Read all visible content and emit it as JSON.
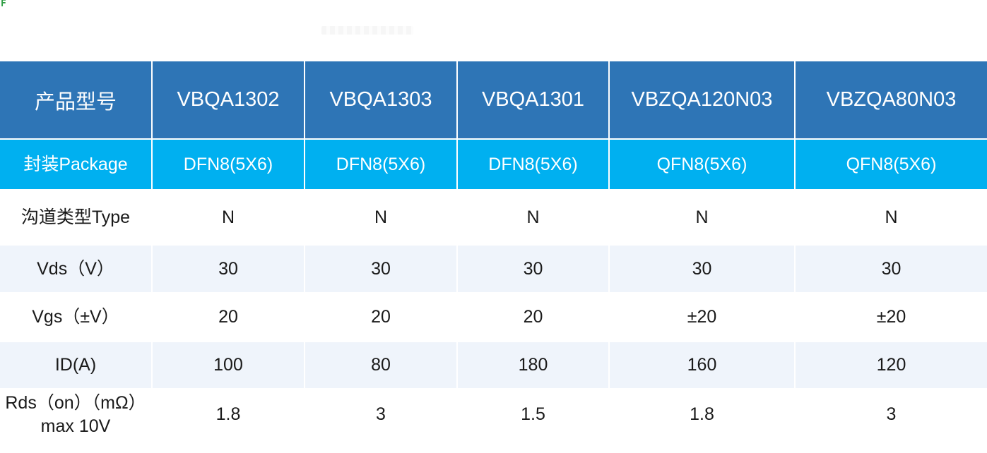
{
  "corner_mark": {
    "text": "F",
    "color": "#2f9e44"
  },
  "colors": {
    "header_bg": "#2E75B6",
    "package_row_bg": "#00B0F0",
    "alt_row_bg": "#EFF4FB",
    "header_text": "#ffffff",
    "body_text": "#1a1a1a"
  },
  "table": {
    "header": {
      "cells": [
        "产品型号",
        "VBQA1302",
        "VBQA1303",
        "VBQA1301",
        "VBZQA120N03",
        "VBZQA80N03"
      ]
    },
    "rows": [
      {
        "label": "封装Package",
        "values": [
          "DFN8(5X6)",
          "DFN8(5X6)",
          "DFN8(5X6)",
          "QFN8(5X6)",
          "QFN8(5X6)"
        ]
      },
      {
        "label": "沟道类型Type",
        "values": [
          "N",
          "N",
          "N",
          "N",
          "N"
        ]
      },
      {
        "label": "Vds（V）",
        "values": [
          "30",
          "30",
          "30",
          "30",
          "30"
        ]
      },
      {
        "label": "Vgs（±V）",
        "values": [
          "20",
          "20",
          "20",
          "±20",
          "±20"
        ]
      },
      {
        "label": "ID(A)",
        "values": [
          "100",
          "80",
          "180",
          "160",
          "120"
        ]
      },
      {
        "label": "Rds（on）（mΩ）max 10V",
        "values": [
          "1.8",
          "3",
          "1.5",
          "1.8",
          "3"
        ]
      }
    ]
  }
}
